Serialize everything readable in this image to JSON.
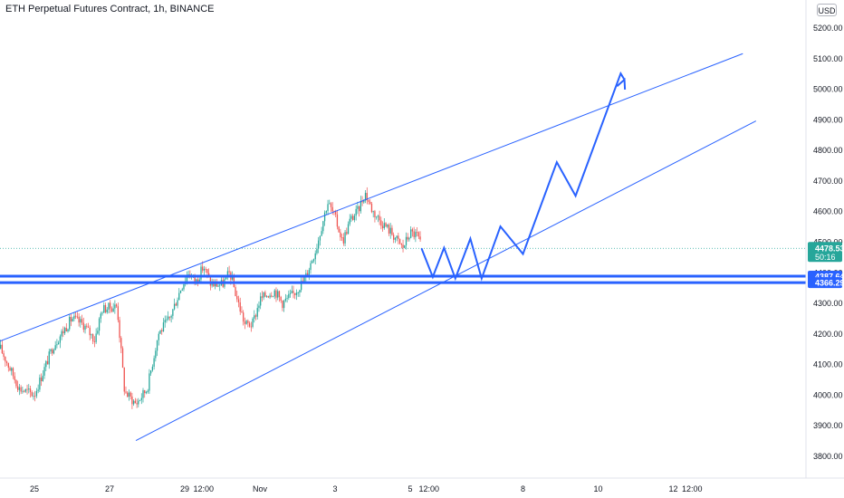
{
  "header": {
    "title": "ETH Perpetual Futures Contract, 1h, BINANCE",
    "currency": "USD"
  },
  "colors": {
    "up": "#26a69a",
    "down": "#ef5350",
    "neutral": "#787b86",
    "drawing": "#2962ff",
    "last_price": "#26a69a",
    "level": "#2962ff"
  },
  "chart_data": {
    "type": "candlestick",
    "title": "ETH Perpetual Futures Contract, 1h, BINANCE",
    "ylim": [
      3760,
      5240
    ],
    "y_ticks": [
      3800,
      3900,
      4000,
      4100,
      4200,
      4300,
      4400,
      4500,
      4600,
      4700,
      4800,
      4900,
      5000,
      5100,
      5200
    ],
    "y_tick_labels": [
      "3800.00",
      "3900.00",
      "4000.00",
      "4100.00",
      "4200.00",
      "4300.00",
      "4400.00",
      "4500.00",
      "4600.00",
      "4700.00",
      "4800.00",
      "4900.00",
      "5000.00",
      "5100.00",
      "5200.00"
    ],
    "x_ticks": [
      "25",
      "27",
      "29",
      "12:00",
      "Nov",
      "3",
      "5",
      "12:00",
      "8",
      "10",
      "12",
      "12:00"
    ],
    "x_tick_day_positions": [
      0,
      2,
      4,
      4.5,
      6,
      8,
      10,
      10.5,
      13,
      15,
      17,
      17.5
    ],
    "price_path": [
      [
        -0.9,
        4150
      ],
      [
        -0.4,
        4020
      ],
      [
        0,
        4000
      ],
      [
        0.5,
        4160
      ],
      [
        1,
        4250
      ],
      [
        1.3,
        4230
      ],
      [
        1.6,
        4180
      ],
      [
        1.8,
        4280
      ],
      [
        2.2,
        4290
      ],
      [
        2.4,
        4010
      ],
      [
        2.7,
        3970
      ],
      [
        3,
        4020
      ],
      [
        3.3,
        4200
      ],
      [
        3.6,
        4250
      ],
      [
        3.9,
        4350
      ],
      [
        4.1,
        4400
      ],
      [
        4.3,
        4370
      ],
      [
        4.5,
        4420
      ],
      [
        4.7,
        4360
      ],
      [
        5,
        4360
      ],
      [
        5.2,
        4400
      ],
      [
        5.4,
        4310
      ],
      [
        5.6,
        4230
      ],
      [
        5.8,
        4230
      ],
      [
        6,
        4310
      ],
      [
        6.2,
        4330
      ],
      [
        6.4,
        4340
      ],
      [
        6.6,
        4300
      ],
      [
        6.9,
        4330
      ],
      [
        7.2,
        4380
      ],
      [
        7.5,
        4480
      ],
      [
        7.8,
        4630
      ],
      [
        8,
        4580
      ],
      [
        8.2,
        4500
      ],
      [
        8.4,
        4570
      ],
      [
        8.6,
        4600
      ],
      [
        8.8,
        4660
      ],
      [
        9,
        4600
      ],
      [
        9.2,
        4570
      ],
      [
        9.5,
        4530
      ],
      [
        9.8,
        4480
      ],
      [
        10,
        4530
      ],
      [
        10.2,
        4520
      ],
      [
        10.3,
        4478.53
      ]
    ],
    "last_price": 4478.53,
    "last_price_label": "4478.53",
    "countdown_label": "50:16",
    "horizontal_levels": [
      {
        "value": 4387.64,
        "label": "4387.64"
      },
      {
        "value": 4366.29,
        "label": "4366.29"
      }
    ],
    "channel_lines": [
      {
        "from": [
          -1.55,
          4145
        ],
        "to": [
          18.85,
          5115
        ]
      },
      {
        "from": [
          2.7,
          3850
        ],
        "to": [
          19.2,
          4895
        ]
      }
    ],
    "projection_path": [
      [
        10.3,
        4478.53
      ],
      [
        10.6,
        4385
      ],
      [
        10.9,
        4480
      ],
      [
        11.2,
        4380
      ],
      [
        11.6,
        4510
      ],
      [
        11.9,
        4380
      ],
      [
        12.4,
        4550
      ],
      [
        13.0,
        4460
      ],
      [
        13.9,
        4760
      ],
      [
        14.4,
        4650
      ],
      [
        15.6,
        5050
      ],
      [
        15.7,
        5030
      ]
    ],
    "grid": "off",
    "legend": "none"
  }
}
